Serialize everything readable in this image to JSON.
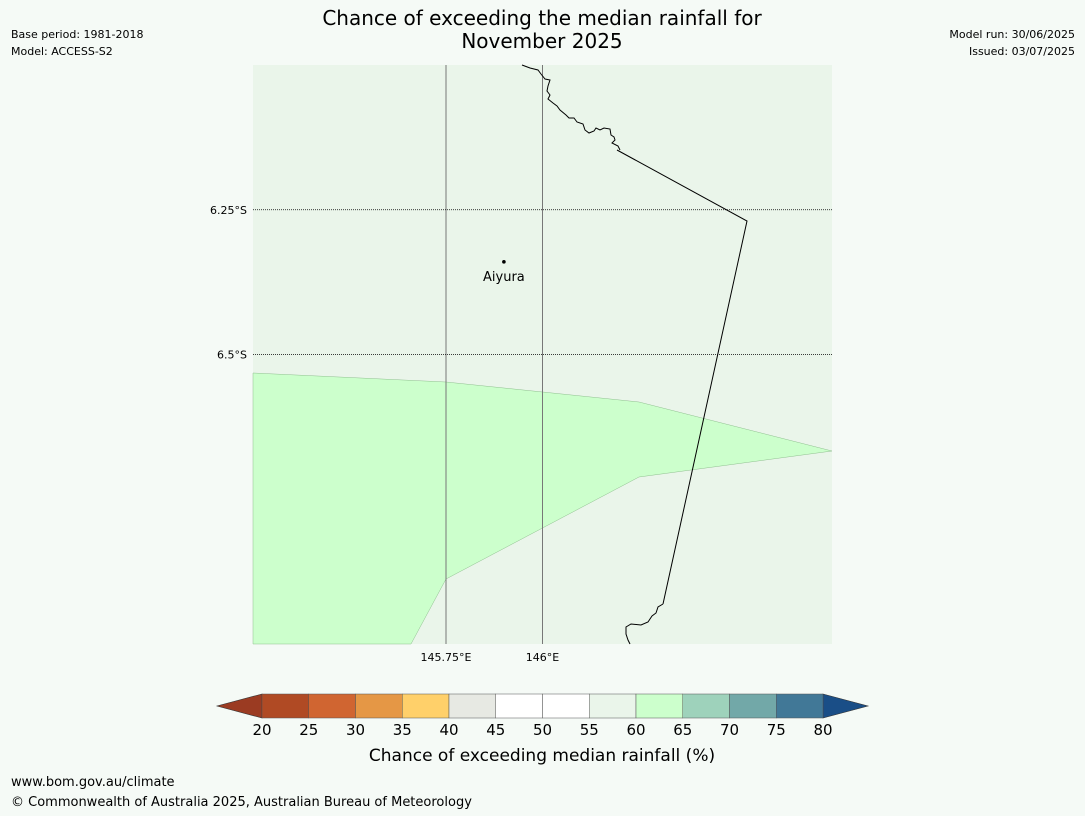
{
  "header": {
    "title_line1": "Chance of exceeding the median rainfall for",
    "title_line2": "November 2025",
    "base_period": "Base period: 1981-2018",
    "model": "Model: ACCESS-S2",
    "model_run": "Model run: 30/06/2025",
    "issued": "Issued: 03/07/2025"
  },
  "map": {
    "lon_range": [
      145.25,
      146.75
    ],
    "lat_range": [
      -6.0,
      -7.0
    ],
    "lat_labels": [
      {
        "value": -6.25,
        "text": "6.25°S"
      },
      {
        "value": -6.5,
        "text": "6.5°S"
      }
    ],
    "lon_labels": [
      {
        "value": 145.75,
        "text": "145.75°E"
      },
      {
        "value": 146.0,
        "text": "146°E"
      }
    ],
    "location": {
      "name": "Aiyura",
      "lon": 145.9,
      "lat": -6.34
    },
    "background_category": "55-60",
    "highlight_category": "60-65",
    "colors": {
      "background": "#eaf5ea",
      "highlight": "#ccffcc",
      "gridline": "#777777",
      "coastline": "#000000"
    }
  },
  "colorbar": {
    "label": "Chance of exceeding median rainfall (%)",
    "ticks": [
      "20",
      "25",
      "30",
      "35",
      "40",
      "45",
      "50",
      "55",
      "60",
      "65",
      "70",
      "75",
      "80"
    ],
    "under_color": "#9b3b22",
    "over_color": "#1a4e87",
    "segments": [
      {
        "range": "20-25",
        "color": "#b04a24"
      },
      {
        "range": "25-30",
        "color": "#d06531"
      },
      {
        "range": "30-35",
        "color": "#e59745"
      },
      {
        "range": "35-40",
        "color": "#ffd06a"
      },
      {
        "range": "40-45",
        "color": "#e7e9e3"
      },
      {
        "range": "45-50",
        "color": "#ffffff"
      },
      {
        "range": "50-55",
        "color": "#ffffff"
      },
      {
        "range": "55-60",
        "color": "#eaf5ea"
      },
      {
        "range": "60-65",
        "color": "#ccffcc"
      },
      {
        "range": "65-70",
        "color": "#9ed2bb"
      },
      {
        "range": "70-75",
        "color": "#72a8a8"
      },
      {
        "range": "75-80",
        "color": "#417897"
      }
    ]
  },
  "footer": {
    "url": "www.bom.gov.au/climate",
    "copyright": "© Commonwealth of Australia 2025, Australian Bureau of Meteorology"
  }
}
